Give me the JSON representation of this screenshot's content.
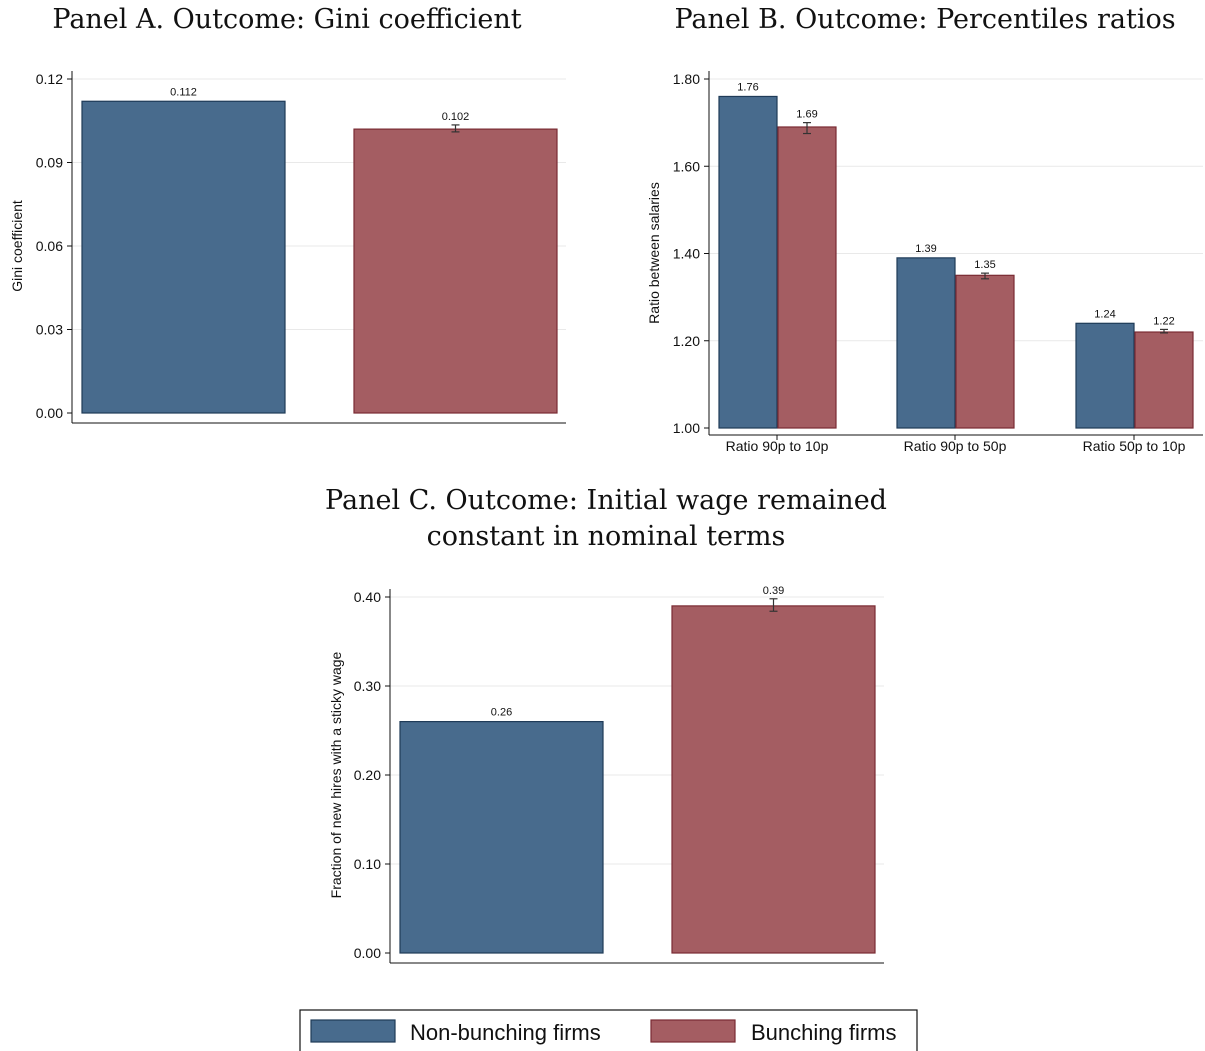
{
  "colors": {
    "non_bunching": "#486b8d",
    "non_bunching_edge": "#1f3b58",
    "bunching": "#a45d62",
    "bunching_edge": "#7a2b33",
    "grid": "#e9e9e9"
  },
  "legend": {
    "non_bunching": "Non-bunching firms",
    "bunching": "Bunching firms"
  },
  "chart_data": [
    {
      "type": "bar",
      "title": "Panel A. Outcome: Gini coefficient",
      "ylabel": "Gini coefficient",
      "xlabel": "",
      "ylim": [
        0,
        0.12
      ],
      "yticks": [
        "0.00",
        "0.03",
        "0.06",
        "0.09",
        "0.12"
      ],
      "grid": true,
      "categories": [
        ""
      ],
      "series": [
        {
          "name": "Non-bunching firms",
          "values": [
            0.112
          ],
          "labels": [
            "0.112"
          ]
        },
        {
          "name": "Bunching firms",
          "values": [
            0.102
          ],
          "labels": [
            "0.102"
          ],
          "ci_low": [
            0.101
          ],
          "ci_high": [
            0.1035
          ]
        }
      ]
    },
    {
      "type": "bar",
      "title": "Panel B. Outcome: Percentiles ratios",
      "ylabel": "Ratio between salaries",
      "xlabel": "",
      "ylim": [
        1.0,
        1.8
      ],
      "yticks": [
        "1.00",
        "1.20",
        "1.40",
        "1.60",
        "1.80"
      ],
      "grid": true,
      "categories": [
        "Ratio 90p to 10p",
        "Ratio 90p to 50p",
        "Ratio 50p to 10p"
      ],
      "series": [
        {
          "name": "Non-bunching firms",
          "values": [
            1.76,
            1.39,
            1.24
          ],
          "labels": [
            "1.76",
            "1.39",
            "1.24"
          ]
        },
        {
          "name": "Bunching firms",
          "values": [
            1.69,
            1.35,
            1.22
          ],
          "labels": [
            "1.69",
            "1.35",
            "1.22"
          ],
          "ci_low": [
            1.675,
            1.342,
            1.218
          ],
          "ci_high": [
            1.7,
            1.355,
            1.226
          ]
        }
      ]
    },
    {
      "type": "bar",
      "title": "Panel C. Outcome: Initial wage remained constant in nominal terms",
      "title_lines": [
        "Panel C. Outcome: Initial wage remained",
        "constant in nominal terms"
      ],
      "ylabel": "Fraction of new hires with a sticky wage",
      "xlabel": "",
      "ylim": [
        0,
        0.4
      ],
      "yticks": [
        "0.00",
        "0.10",
        "0.20",
        "0.30",
        "0.40"
      ],
      "grid": true,
      "categories": [
        ""
      ],
      "series": [
        {
          "name": "Non-bunching firms",
          "values": [
            0.26
          ],
          "labels": [
            "0.26"
          ]
        },
        {
          "name": "Bunching firms",
          "values": [
            0.39
          ],
          "labels": [
            "0.39"
          ],
          "ci_low": [
            0.384
          ],
          "ci_high": [
            0.398
          ]
        }
      ]
    }
  ]
}
